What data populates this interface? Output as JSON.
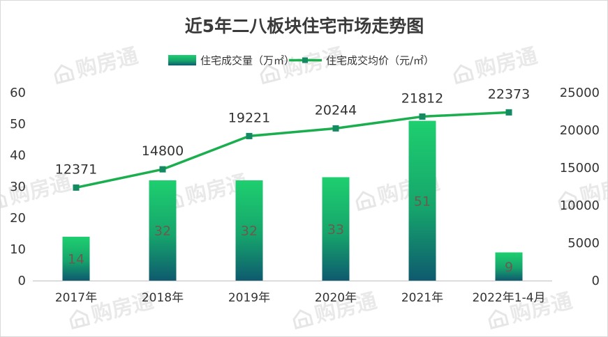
{
  "watermark": "购房通",
  "colors": {
    "bar_top": "#1ecf6f",
    "bar_bottom": "#0e5a6e",
    "line": "#1aae4e",
    "marker": "#148a62"
  },
  "chart_data": {
    "type": "bar",
    "title": "近5年二八板块住宅市场走势图",
    "categories": [
      "2017年",
      "2018年",
      "2019年",
      "2020年",
      "2021年",
      "2022年1-4月"
    ],
    "series": [
      {
        "name": "住宅成交量（万㎡）",
        "type": "bar",
        "axis": "left",
        "values": [
          14,
          32,
          32,
          33,
          51,
          9
        ]
      },
      {
        "name": "住宅成交均价（元/㎡）",
        "type": "line",
        "axis": "right",
        "values": [
          12371,
          14800,
          19221,
          20244,
          21812,
          22373
        ]
      }
    ],
    "y_left": {
      "lim": [
        0,
        60
      ],
      "ticks": [
        "0",
        "10",
        "20",
        "30",
        "40",
        "50",
        "60"
      ]
    },
    "y_right": {
      "lim": [
        0,
        25000
      ],
      "ticks": [
        "0",
        "5000",
        "10000",
        "15000",
        "20000",
        "25000"
      ]
    },
    "legend_position": "top-center",
    "grid": false
  }
}
